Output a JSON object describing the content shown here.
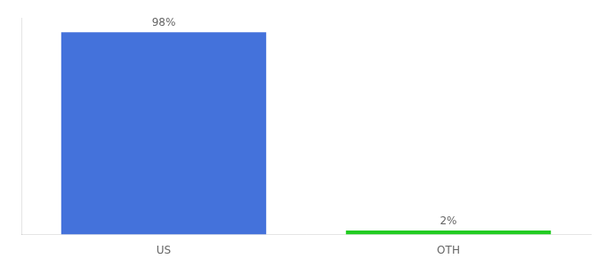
{
  "chart_data": {
    "type": "bar",
    "categories": [
      "US",
      "OTH"
    ],
    "values": [
      98,
      2
    ],
    "value_labels": [
      "98%",
      "2%"
    ],
    "data_labels": true,
    "colors": [
      "#4472db",
      "#22cc22"
    ],
    "ylim": [
      0,
      105
    ],
    "grid": false,
    "tick_labels": "x"
  }
}
